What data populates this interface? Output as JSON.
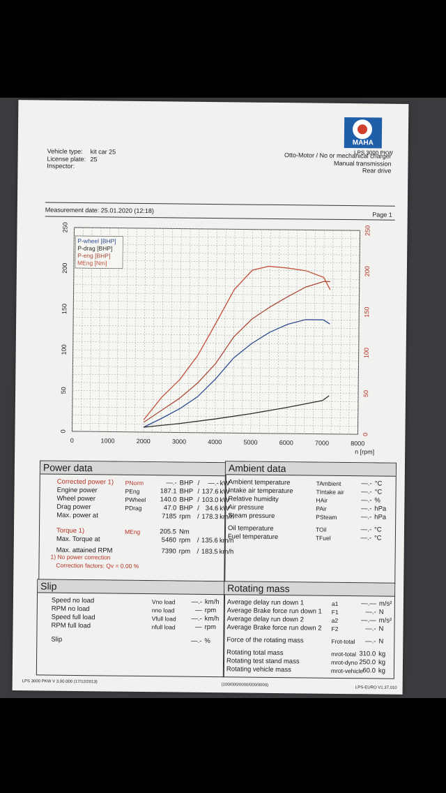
{
  "header": {
    "model": "LPS 3000 PKW",
    "vehicle_type_label": "Vehicle type:",
    "vehicle_type": "kit car 25",
    "license_plate_label": "License plate:",
    "license_plate": "25",
    "inspector_label": "Inspector:",
    "engine_desc": "Otto-Motor / No or mechanical charger",
    "transmission": "Manual transmission",
    "drive": "Rear drive",
    "logo_text": "MAHA"
  },
  "measurement": {
    "date_label": "Measurement date: 25.01.2020 (12:18)",
    "page": "Page 1"
  },
  "chart_data": {
    "type": "line",
    "x_label": "n [rpm]",
    "x_ticks": [
      "0",
      "1000",
      "2000",
      "3000",
      "4000",
      "5000",
      "6000",
      "7000",
      "8000"
    ],
    "y_ticks_left": [
      "0",
      "50",
      "100",
      "150",
      "200",
      "250"
    ],
    "y_ticks_right": [
      "0",
      "50",
      "100",
      "150",
      "200",
      "250"
    ],
    "xlim": [
      0,
      8000
    ],
    "ylim": [
      0,
      250
    ],
    "grid": true,
    "legend_position": "top-left",
    "legend": [
      "P-wheel [BHP]",
      "P-drag [BHP]",
      "P-eng [BHP]",
      "MEng [Nm]"
    ],
    "series": [
      {
        "name": "P-wheel [BHP]",
        "color": "#2f4b8f",
        "x": [
          2000,
          2500,
          3000,
          3500,
          4000,
          4500,
          5000,
          5500,
          6000,
          6500,
          7000,
          7185
        ],
        "y": [
          6,
          17,
          29,
          44,
          66,
          92,
          110,
          124,
          134,
          140,
          140,
          135
        ]
      },
      {
        "name": "P-drag [BHP]",
        "color": "#2a2a2a",
        "x": [
          2000,
          3000,
          4000,
          5000,
          6000,
          7000,
          7185
        ],
        "y": [
          6,
          11,
          17,
          24,
          32,
          41,
          47
        ]
      },
      {
        "name": "P-eng [BHP]",
        "color": "#a84a38",
        "x": [
          2000,
          2500,
          3000,
          3500,
          4000,
          4500,
          5000,
          5500,
          6000,
          6500,
          7000,
          7185
        ],
        "y": [
          12,
          27,
          42,
          61,
          85,
          118,
          140,
          155,
          168,
          180,
          187,
          187
        ]
      },
      {
        "name": "MEng [Nm]",
        "color": "#c4503a",
        "x": [
          2000,
          2500,
          3000,
          3500,
          4000,
          4500,
          5000,
          5460,
          6000,
          6500,
          7000,
          7185
        ],
        "y": [
          15,
          43,
          65,
          95,
          135,
          176,
          200,
          205,
          203,
          200,
          192,
          177
        ]
      }
    ]
  },
  "power_data": {
    "title": "Power data",
    "rows": [
      {
        "label": "Corrected power 1)",
        "sym": "PNorm",
        "v1": "—.-",
        "u1": "BHP",
        "sep": "/",
        "v2": "—.-",
        "u2": "kW"
      },
      {
        "label": "Engine power",
        "sym": "PEng",
        "v1": "187.1",
        "u1": "BHP",
        "sep": "/",
        "v2": "137.6",
        "u2": "kW"
      },
      {
        "label": "Wheel power",
        "sym": "PWheel",
        "v1": "140.0",
        "u1": "BHP",
        "sep": "/",
        "v2": "103.0",
        "u2": "kW"
      },
      {
        "label": "Drag power",
        "sym": "PDrag",
        "v1": "47.0",
        "u1": "BHP",
        "sep": "/",
        "v2": "34.6",
        "u2": "kW"
      },
      {
        "label": "Max. power at",
        "sym": "",
        "v1": "7185",
        "u1": "rpm",
        "sep": "/",
        "v2": "178.3",
        "u2": "km/h"
      },
      {
        "label": "Torque 1)",
        "sym": "MEng",
        "v1": "205.5",
        "u1": "Nm",
        "sep": "",
        "v2": "",
        "u2": ""
      },
      {
        "label": "Max. Torque at",
        "sym": "",
        "v1": "5460",
        "u1": "rpm",
        "sep": "/",
        "v2": "135.6",
        "u2": "km/h"
      },
      {
        "label": "Max. attained RPM",
        "sym": "",
        "v1": "7390",
        "u1": "rpm",
        "sep": "/",
        "v2": "183.5",
        "u2": "km/h"
      }
    ],
    "note1": "1) No power correction",
    "note2": "Correction factors: Qv =  0.00 %"
  },
  "ambient_data": {
    "title": "Ambient data",
    "rows": [
      {
        "label": "Ambient temperature",
        "sym": "TAmbient",
        "val": "—.-",
        "unit": "°C"
      },
      {
        "label": "Intake air temperature",
        "sym": "TIntake air",
        "val": "—.-",
        "unit": "°C"
      },
      {
        "label": "Relative humidity",
        "sym": "HAir",
        "val": "—.-",
        "unit": "%"
      },
      {
        "label": "Air pressure",
        "sym": "PAir",
        "val": "—.-",
        "unit": "hPa"
      },
      {
        "label": "Steam pressure",
        "sym": "PSteam",
        "val": "—.-",
        "unit": "hPa"
      },
      {
        "label": "Oil temperature",
        "sym": "TOil",
        "val": "—.-",
        "unit": "°C"
      },
      {
        "label": "Fuel temperature",
        "sym": "TFuel",
        "val": "—.-",
        "unit": "°C"
      }
    ]
  },
  "slip": {
    "title": "Slip",
    "rows": [
      {
        "label": "Speed no load",
        "sym": "Vno load",
        "val": "—.-",
        "unit": "km/h"
      },
      {
        "label": "RPM no load",
        "sym": "nno load",
        "val": "—",
        "unit": "rpm"
      },
      {
        "label": "Speed full load",
        "sym": "Vfull load",
        "val": "—.-",
        "unit": "km/h"
      },
      {
        "label": "RPM full load",
        "sym": "nfull load",
        "val": "—",
        "unit": "rpm"
      },
      {
        "label": "Slip",
        "sym": "",
        "val": "—.-",
        "unit": "%"
      }
    ]
  },
  "rotating_mass": {
    "title": "Rotating mass",
    "rows": [
      {
        "label": "Average delay run down 1",
        "sym": "a1",
        "val": "—.—",
        "unit": "m/s²"
      },
      {
        "label": "Average Brake force run down 1",
        "sym": "F1",
        "val": "—.-",
        "unit": "N"
      },
      {
        "label": "Average delay run down 2",
        "sym": "a2",
        "val": "—.—",
        "unit": "m/s²"
      },
      {
        "label": "Average Brake force run down 2",
        "sym": "F2",
        "val": "—.-",
        "unit": "N"
      },
      {
        "label": "Force of the rotating mass",
        "sym": "Frot-total",
        "val": "—.-",
        "unit": "N"
      },
      {
        "label": "Rotating total mass",
        "sym": "mrot-total",
        "val": "310.0",
        "unit": "kg"
      },
      {
        "label": "Rotating test stand mass",
        "sym": "mrot-dyno",
        "val": "250.0",
        "unit": "kg"
      },
      {
        "label": "Rotating vehicle mass",
        "sym": "mrot-vehicle",
        "val": "60.0",
        "unit": "kg"
      }
    ]
  },
  "footer": {
    "left": "LPS 3000 PKW V 3.00.000 (17/12/2013)",
    "center": "(100/000/0000/000/0000)",
    "right": "LPS-EURO V1.37.010"
  }
}
